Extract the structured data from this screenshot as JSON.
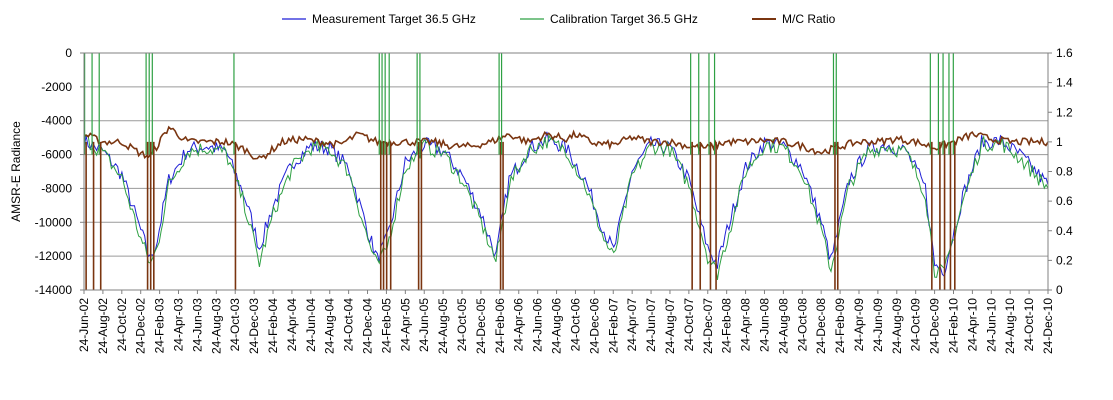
{
  "chart_data": {
    "type": "line",
    "title": "",
    "ylabel_left": "AMSR-E Radiance",
    "ylabel_right": "",
    "xlabel": "",
    "ylim_left": [
      -14000,
      0
    ],
    "ylim_right": [
      0,
      1.6
    ],
    "yticks_left": [
      "0",
      "-2000",
      "-4000",
      "-6000",
      "-8000",
      "-10000",
      "-12000",
      "-14000"
    ],
    "yticks_right": [
      "1.6",
      "1.4",
      "1.2",
      "1",
      "0.8",
      "0.6",
      "0.4",
      "0.2",
      "0"
    ],
    "x_range": [
      "2002-06-24",
      "2010-12-24"
    ],
    "x_tick_labels": [
      "24-Jun-02",
      "24-Aug-02",
      "24-Oct-02",
      "24-Dec-02",
      "24-Feb-03",
      "24-Apr-03",
      "24-Jun-03",
      "24-Aug-03",
      "24-Oct-03",
      "24-Dec-03",
      "24-Feb-04",
      "24-Apr-04",
      "24-Jun-04",
      "24-Aug-04",
      "24-Oct-04",
      "24-Dec-04",
      "24-Feb-05",
      "24-Apr-05",
      "24-Jun-05",
      "24-Aug-05",
      "24-Oct-05",
      "24-Dec-05",
      "24-Feb-06",
      "24-Apr-06",
      "24-Jun-06",
      "24-Aug-06",
      "24-Oct-06",
      "24-Dec-06",
      "24-Feb-07",
      "24-Apr-07",
      "24-Jun-07",
      "24-Aug-07",
      "24-Oct-07",
      "24-Dec-07",
      "24-Feb-08",
      "24-Apr-08",
      "24-Jun-08",
      "24-Aug-08",
      "24-Oct-08",
      "24-Dec-08",
      "24-Feb-09",
      "24-Apr-09",
      "24-Jun-09",
      "24-Aug-09",
      "24-Oct-09",
      "24-Dec-09",
      "24-Feb-10",
      "24-Apr-10",
      "24-Jun-10",
      "24-Aug-10",
      "24-Oct-10",
      "24-Dec-10"
    ],
    "legend_position": "top",
    "gridlines": "horizontal",
    "series": [
      {
        "name": "Measurement Target 36.5 GHz",
        "axis": "left",
        "color": "#1f1fd6",
        "points": [
          [
            "2002-06-24",
            -5200
          ],
          [
            "2002-08-24",
            -5800
          ],
          [
            "2002-10-24",
            -7200
          ],
          [
            "2002-12-24",
            -10500
          ],
          [
            "2003-01-24",
            -12200
          ],
          [
            "2003-02-15",
            -11000
          ],
          [
            "2003-03-24",
            -7500
          ],
          [
            "2003-05-24",
            -5700
          ],
          [
            "2003-07-24",
            -5500
          ],
          [
            "2003-09-24",
            -5800
          ],
          [
            "2003-11-24",
            -8500
          ],
          [
            "2004-01-10",
            -11500
          ],
          [
            "2004-02-24",
            -9000
          ],
          [
            "2004-04-24",
            -6500
          ],
          [
            "2004-06-24",
            -5500
          ],
          [
            "2004-08-24",
            -5600
          ],
          [
            "2004-10-24",
            -6800
          ],
          [
            "2004-12-24",
            -10500
          ],
          [
            "2005-01-24",
            -12200
          ],
          [
            "2005-02-24",
            -11000
          ],
          [
            "2005-04-24",
            -6500
          ],
          [
            "2005-06-24",
            -5400
          ],
          [
            "2005-08-24",
            -5800
          ],
          [
            "2005-10-24",
            -7200
          ],
          [
            "2005-12-24",
            -9500
          ],
          [
            "2006-02-10",
            -12000
          ],
          [
            "2006-03-24",
            -7500
          ],
          [
            "2006-05-24",
            -5700
          ],
          [
            "2006-07-24",
            -5100
          ],
          [
            "2006-09-24",
            -5600
          ],
          [
            "2006-11-24",
            -7500
          ],
          [
            "2007-01-24",
            -10500
          ],
          [
            "2007-02-24",
            -11700
          ],
          [
            "2007-04-24",
            -7000
          ],
          [
            "2007-06-24",
            -5400
          ],
          [
            "2007-08-24",
            -5600
          ],
          [
            "2007-10-24",
            -7500
          ],
          [
            "2007-12-24",
            -11500
          ],
          [
            "2008-01-24",
            -12500
          ],
          [
            "2008-02-24",
            -10500
          ],
          [
            "2008-04-24",
            -6800
          ],
          [
            "2008-06-24",
            -5300
          ],
          [
            "2008-08-24",
            -5500
          ],
          [
            "2008-10-24",
            -6800
          ],
          [
            "2008-12-24",
            -10000
          ],
          [
            "2009-01-24",
            -12300
          ],
          [
            "2009-03-24",
            -7500
          ],
          [
            "2009-05-24",
            -5700
          ],
          [
            "2009-07-24",
            -5400
          ],
          [
            "2009-09-24",
            -5800
          ],
          [
            "2009-11-24",
            -8000
          ],
          [
            "2009-12-24",
            -12500
          ],
          [
            "2010-01-24",
            -12800
          ],
          [
            "2010-03-24",
            -8500
          ],
          [
            "2010-05-24",
            -5300
          ],
          [
            "2010-07-24",
            -5200
          ],
          [
            "2010-09-24",
            -6000
          ],
          [
            "2010-11-24",
            -7200
          ],
          [
            "2010-12-24",
            -7800
          ]
        ]
      },
      {
        "name": "Calibration Target 36.5 GHz",
        "axis": "left",
        "color": "#2ea043",
        "points": [
          [
            "2002-06-24",
            -5000
          ],
          [
            "2002-08-24",
            -5900
          ],
          [
            "2002-10-24",
            -7400
          ],
          [
            "2002-12-24",
            -11000
          ],
          [
            "2003-01-24",
            -12500
          ],
          [
            "2003-02-15",
            -11500
          ],
          [
            "2003-03-24",
            -7800
          ],
          [
            "2003-05-24",
            -5800
          ],
          [
            "2003-07-24",
            -5600
          ],
          [
            "2003-09-24",
            -5900
          ],
          [
            "2003-11-24",
            -9000
          ],
          [
            "2004-01-10",
            -12400
          ],
          [
            "2004-02-24",
            -9500
          ],
          [
            "2004-04-24",
            -6800
          ],
          [
            "2004-06-24",
            -5600
          ],
          [
            "2004-08-24",
            -5700
          ],
          [
            "2004-10-24",
            -7000
          ],
          [
            "2004-12-24",
            -11000
          ],
          [
            "2005-01-24",
            -12600
          ],
          [
            "2005-02-24",
            -11500
          ],
          [
            "2005-04-24",
            -6800
          ],
          [
            "2005-06-24",
            -5500
          ],
          [
            "2005-08-24",
            -5900
          ],
          [
            "2005-10-24",
            -7500
          ],
          [
            "2005-12-24",
            -10000
          ],
          [
            "2006-02-10",
            -12300
          ],
          [
            "2006-03-24",
            -7800
          ],
          [
            "2006-05-24",
            -5800
          ],
          [
            "2006-07-24",
            -5200
          ],
          [
            "2006-09-24",
            -5700
          ],
          [
            "2006-11-24",
            -7800
          ],
          [
            "2007-01-24",
            -11000
          ],
          [
            "2007-02-24",
            -12100
          ],
          [
            "2007-04-24",
            -7300
          ],
          [
            "2007-06-24",
            -5500
          ],
          [
            "2007-08-24",
            -5700
          ],
          [
            "2007-10-24",
            -7800
          ],
          [
            "2007-12-24",
            -12000
          ],
          [
            "2008-01-24",
            -13000
          ],
          [
            "2008-02-24",
            -11000
          ],
          [
            "2008-04-24",
            -7000
          ],
          [
            "2008-06-24",
            -5400
          ],
          [
            "2008-08-24",
            -5600
          ],
          [
            "2008-10-24",
            -7000
          ],
          [
            "2008-12-24",
            -10500
          ],
          [
            "2009-01-24",
            -12800
          ],
          [
            "2009-03-24",
            -7800
          ],
          [
            "2009-05-24",
            -5800
          ],
          [
            "2009-07-24",
            -5500
          ],
          [
            "2009-09-24",
            -5900
          ],
          [
            "2009-11-24",
            -8300
          ],
          [
            "2009-12-24",
            -12800
          ],
          [
            "2010-01-24",
            -13000
          ],
          [
            "2010-03-24",
            -8800
          ],
          [
            "2010-05-24",
            -5400
          ],
          [
            "2010-07-24",
            -5300
          ],
          [
            "2010-09-24",
            -6200
          ],
          [
            "2010-11-24",
            -7400
          ],
          [
            "2010-12-24",
            -8000
          ]
        ]
      },
      {
        "name": "M/C Ratio",
        "axis": "right",
        "color": "#7a3510",
        "points": [
          [
            "2002-06-24",
            1.05
          ],
          [
            "2002-08-24",
            1.0
          ],
          [
            "2002-10-24",
            1.0
          ],
          [
            "2002-12-24",
            0.92
          ],
          [
            "2003-01-24",
            0.9
          ],
          [
            "2003-03-24",
            1.1
          ],
          [
            "2003-05-24",
            1.0
          ],
          [
            "2003-07-24",
            1.0
          ],
          [
            "2003-09-24",
            1.0
          ],
          [
            "2003-11-24",
            0.95
          ],
          [
            "2004-01-10",
            0.88
          ],
          [
            "2004-03-24",
            1.0
          ],
          [
            "2004-05-24",
            1.02
          ],
          [
            "2004-07-24",
            1.0
          ],
          [
            "2004-09-24",
            0.98
          ],
          [
            "2004-11-24",
            1.05
          ],
          [
            "2005-01-24",
            1.0
          ],
          [
            "2005-03-24",
            1.0
          ],
          [
            "2005-05-24",
            1.0
          ],
          [
            "2005-07-24",
            1.0
          ],
          [
            "2005-09-24",
            0.97
          ],
          [
            "2005-11-24",
            0.97
          ],
          [
            "2006-01-24",
            1.0
          ],
          [
            "2006-03-24",
            1.05
          ],
          [
            "2006-05-24",
            1.0
          ],
          [
            "2006-07-24",
            1.05
          ],
          [
            "2006-09-24",
            1.02
          ],
          [
            "2006-10-24",
            1.05
          ],
          [
            "2006-12-24",
            0.99
          ],
          [
            "2007-02-24",
            0.98
          ],
          [
            "2007-04-24",
            1.03
          ],
          [
            "2007-06-24",
            1.0
          ],
          [
            "2007-08-24",
            1.0
          ],
          [
            "2007-10-24",
            0.97
          ],
          [
            "2007-12-24",
            0.96
          ],
          [
            "2008-02-24",
            1.0
          ],
          [
            "2008-04-24",
            1.0
          ],
          [
            "2008-06-24",
            1.01
          ],
          [
            "2008-08-24",
            1.0
          ],
          [
            "2008-10-24",
            0.97
          ],
          [
            "2008-12-24",
            0.93
          ],
          [
            "2009-02-24",
            0.97
          ],
          [
            "2009-04-24",
            1.0
          ],
          [
            "2009-06-24",
            1.0
          ],
          [
            "2009-08-24",
            1.02
          ],
          [
            "2009-10-24",
            1.0
          ],
          [
            "2009-12-24",
            0.96
          ],
          [
            "2010-02-24",
            1.0
          ],
          [
            "2010-04-24",
            1.05
          ],
          [
            "2010-06-24",
            1.02
          ],
          [
            "2010-08-24",
            1.0
          ],
          [
            "2010-10-24",
            1.0
          ],
          [
            "2010-12-24",
            1.0
          ]
        ]
      }
    ],
    "outage_dates": [
      "2002-06-26",
      "2002-07-20",
      "2002-08-12",
      "2003-01-10",
      "2003-01-20",
      "2003-01-30",
      "2003-10-20",
      "2005-01-30",
      "2005-02-08",
      "2005-02-18",
      "2005-03-03",
      "2005-06-01",
      "2005-06-10",
      "2006-02-20",
      "2006-02-28",
      "2007-10-30",
      "2007-11-25",
      "2007-12-28",
      "2008-01-15",
      "2009-02-01",
      "2009-02-10",
      "2009-12-10",
      "2010-01-05",
      "2010-01-20",
      "2010-02-08",
      "2010-02-22"
    ]
  }
}
